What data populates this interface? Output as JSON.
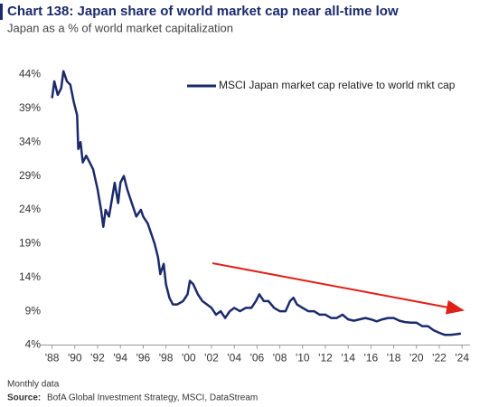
{
  "chart_data": {
    "type": "line",
    "title": "Chart 138: Japan share of world market cap near all-time low",
    "subtitle": "Japan as a % of world market capitalization",
    "notes": "Monthly data",
    "source_label": "Source:",
    "source": "BofA Global Investment Strategy, MSCI, DataStream",
    "legend": "upper right",
    "xlim": [
      1987,
      2024.7
    ],
    "ylim": [
      4,
      47
    ],
    "xticks": [
      {
        "value": 1988,
        "label": "'88"
      },
      {
        "value": 1990,
        "label": "'90"
      },
      {
        "value": 1992,
        "label": "'92"
      },
      {
        "value": 1994,
        "label": "'94"
      },
      {
        "value": 1996,
        "label": "'96"
      },
      {
        "value": 1998,
        "label": "'98"
      },
      {
        "value": 2000,
        "label": "'00"
      },
      {
        "value": 2002,
        "label": "'02"
      },
      {
        "value": 2004,
        "label": "'04"
      },
      {
        "value": 2006,
        "label": "'06"
      },
      {
        "value": 2008,
        "label": "'08"
      },
      {
        "value": 2010,
        "label": "'10"
      },
      {
        "value": 2012,
        "label": "'12"
      },
      {
        "value": 2014,
        "label": "'14"
      },
      {
        "value": 2016,
        "label": "'16"
      },
      {
        "value": 2018,
        "label": "'18"
      },
      {
        "value": 2020,
        "label": "'20"
      },
      {
        "value": 2022,
        "label": "'22"
      },
      {
        "value": 2024,
        "label": "'24"
      }
    ],
    "yticks": [
      {
        "value": 4,
        "label": "4%"
      },
      {
        "value": 9,
        "label": "9%"
      },
      {
        "value": 14,
        "label": "14%"
      },
      {
        "value": 19,
        "label": "19%"
      },
      {
        "value": 24,
        "label": "24%"
      },
      {
        "value": 29,
        "label": "29%"
      },
      {
        "value": 34,
        "label": "34%"
      },
      {
        "value": 39,
        "label": "39%"
      },
      {
        "value": 44,
        "label": "44%"
      }
    ],
    "x": [
      1988.0,
      1988.2,
      1988.5,
      1988.8,
      1989.0,
      1989.3,
      1989.6,
      1989.9,
      1990.2,
      1990.3,
      1990.5,
      1990.7,
      1991.0,
      1991.3,
      1991.6,
      1992.0,
      1992.3,
      1992.5,
      1992.7,
      1993.0,
      1993.3,
      1993.5,
      1993.8,
      1994.0,
      1994.3,
      1994.6,
      1995.0,
      1995.4,
      1995.8,
      1996.0,
      1996.4,
      1996.8,
      1997.0,
      1997.3,
      1997.5,
      1997.8,
      1998.0,
      1998.3,
      1998.6,
      1999.0,
      1999.5,
      1999.9,
      2000.1,
      2000.4,
      2000.8,
      2001.2,
      2001.6,
      2002.0,
      2002.4,
      2002.8,
      2003.2,
      2003.6,
      2004.0,
      2004.5,
      2005.0,
      2005.5,
      2005.9,
      2006.2,
      2006.6,
      2007.0,
      2007.5,
      2008.0,
      2008.5,
      2008.9,
      2009.2,
      2009.5,
      2010.0,
      2010.5,
      2011.0,
      2011.5,
      2012.0,
      2012.5,
      2013.0,
      2013.5,
      2014.0,
      2014.5,
      2015.0,
      2015.5,
      2016.0,
      2016.5,
      2017.0,
      2017.5,
      2018.0,
      2018.5,
      2019.0,
      2019.5,
      2020.0,
      2020.5,
      2021.0,
      2021.5,
      2022.0,
      2022.5,
      2023.0,
      2023.5,
      2023.9
    ],
    "series": [
      {
        "name": "MSCI Japan market cap relative to world mkt cap",
        "color": "#1b2a6b",
        "values": [
          40.5,
          43,
          41,
          42,
          44.5,
          43,
          42.5,
          40,
          38,
          33,
          34,
          31,
          32,
          31,
          30,
          27,
          24,
          21.5,
          24,
          23,
          26,
          28,
          25,
          28,
          29,
          27,
          25,
          23,
          24,
          23,
          22,
          20,
          19,
          17,
          14.5,
          16,
          13,
          11,
          10,
          10,
          10.5,
          11.5,
          13.5,
          13,
          11.5,
          10.5,
          10,
          9.5,
          8.5,
          9,
          8,
          9,
          9.5,
          9,
          9.5,
          9.5,
          10.5,
          11.5,
          10.5,
          10.5,
          9.5,
          9,
          9,
          10.5,
          11,
          10,
          9.5,
          9,
          9,
          8.5,
          8.5,
          8,
          8,
          8.5,
          7.8,
          7.6,
          7.8,
          8,
          7.8,
          7.5,
          7.8,
          8,
          8,
          7.6,
          7.4,
          7.3,
          7.3,
          6.8,
          6.8,
          6.2,
          5.8,
          5.5,
          5.5,
          5.6,
          5.7
        ]
      }
    ]
  }
}
